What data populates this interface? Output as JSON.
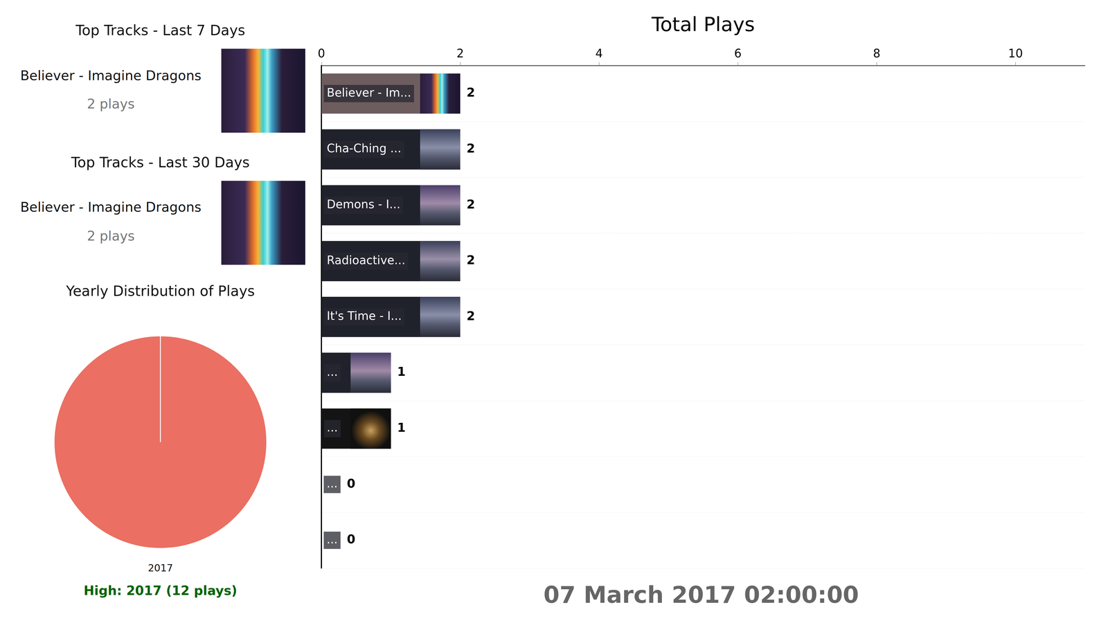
{
  "chart_data": [
    {
      "type": "bar",
      "title": "Total Plays",
      "orientation": "horizontal",
      "categories": [
        "Believer - Im...",
        "Cha-Ching ...",
        "Demons - I...",
        "Radioactive...",
        "It's Time - I...",
        "...",
        "...",
        "...",
        "..."
      ],
      "values": [
        2,
        2,
        2,
        2,
        2,
        1,
        1,
        0,
        0
      ],
      "colors": [
        "#6e5d5f",
        "#1f212b",
        "#1f212b",
        "#1f212b",
        "#1f212b",
        "#1f212b",
        "#141414",
        "#9a9a9a",
        "#6b5a3a"
      ],
      "xlim": [
        0,
        11
      ],
      "xticks": [
        0,
        2,
        4,
        6,
        8,
        10
      ],
      "data_labels": true,
      "tick_labels": "x",
      "grid": true
    },
    {
      "type": "pie",
      "title": "Yearly Distribution of Plays",
      "categories": [
        "2017"
      ],
      "values": [
        12
      ],
      "colors": [
        "#eb6f62"
      ],
      "annotation": "High: 2017 (12 plays)"
    }
  ],
  "top_tracks": [
    {
      "title": "Top Tracks - Last 7 Days",
      "track": "Believer - Imagine Dragons",
      "plays": "2 plays"
    },
    {
      "title": "Top Tracks - Last 30 Days",
      "track": "Believer - Imagine Dragons",
      "plays": "2 plays"
    }
  ],
  "timestamp": "07 March 2017 02:00:00"
}
